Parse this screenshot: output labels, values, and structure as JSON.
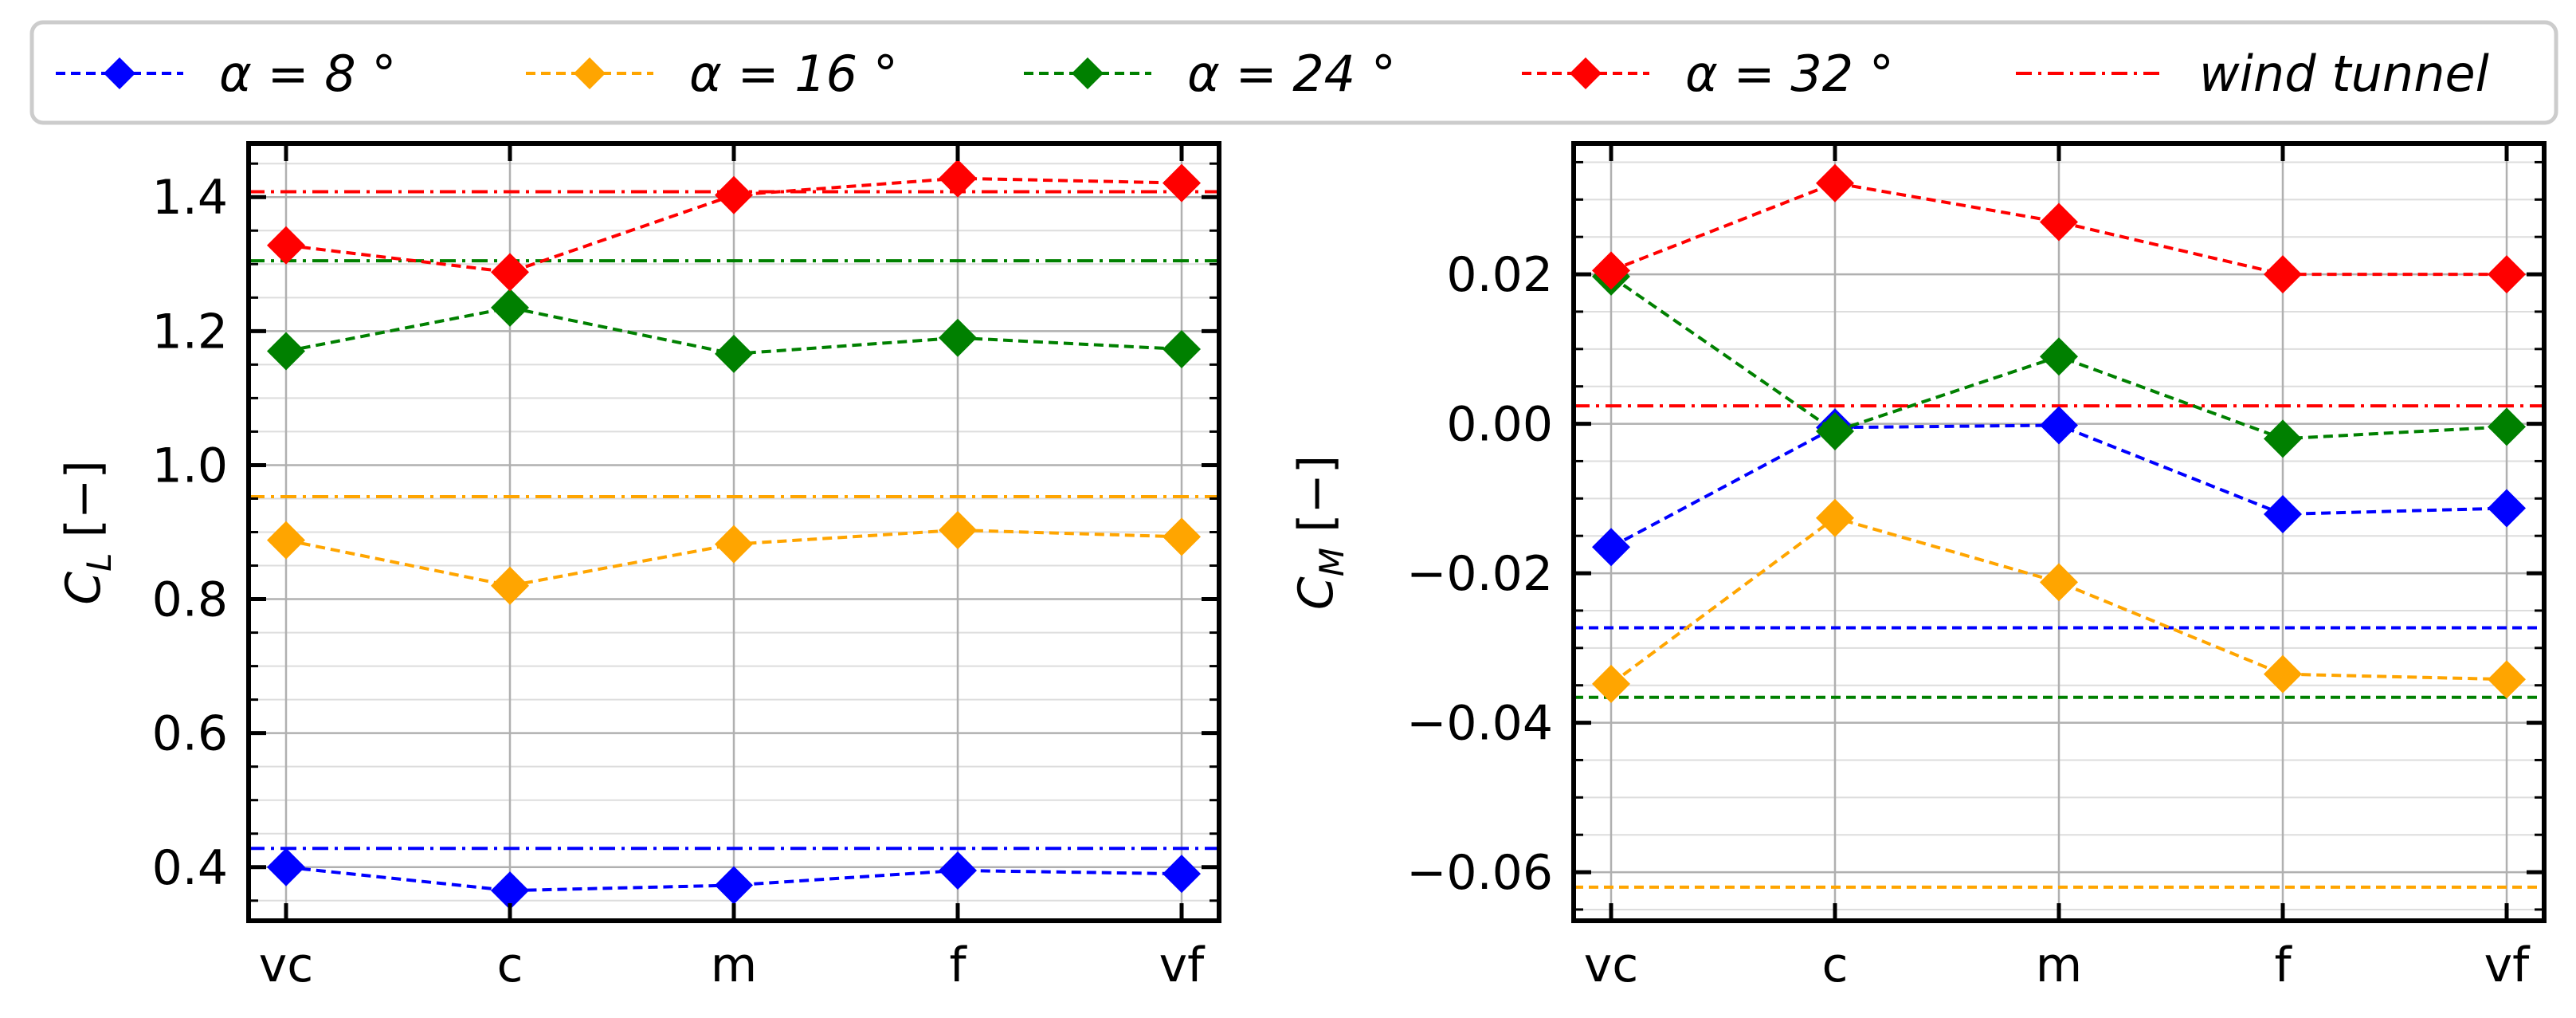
{
  "legend": {
    "entries": [
      {
        "label_text": "α = 8 °",
        "color": "#0000ff",
        "style": "marker"
      },
      {
        "label_text": "α = 16 °",
        "color": "#ffa500",
        "style": "marker"
      },
      {
        "label_text": "α = 24 °",
        "color": "#008000",
        "style": "marker"
      },
      {
        "label_text": "α = 32 °",
        "color": "#ff0000",
        "style": "marker"
      },
      {
        "label_text": "wind tunnel",
        "color": "#ff0000",
        "style": "dashdot"
      }
    ]
  },
  "colors": {
    "a8": "#0000ff",
    "a16": "#ffa500",
    "a24": "#008000",
    "a32": "#ff0000"
  },
  "chart_data": [
    {
      "type": "line",
      "panel": "left",
      "categories": [
        "vc",
        "c",
        "m",
        "f",
        "vf"
      ],
      "ylabel": "C_L [−]",
      "ylabel_main": "C",
      "ylabel_sub": "L",
      "ylabel_rest": " [−]",
      "ylim": [
        0.32,
        1.48
      ],
      "yticks": [
        0.4,
        0.6,
        0.8,
        1.0,
        1.2,
        1.4
      ],
      "ytick_labels": [
        "0.4",
        "0.6",
        "0.8",
        "1.0",
        "1.2",
        "1.4"
      ],
      "series": [
        {
          "name": "α = 8 °",
          "color": "#0000ff",
          "values": [
            0.4,
            0.365,
            0.373,
            0.395,
            0.39
          ]
        },
        {
          "name": "α = 16 °",
          "color": "#ffa500",
          "values": [
            0.888,
            0.82,
            0.882,
            0.903,
            0.893
          ]
        },
        {
          "name": "α = 24 °",
          "color": "#008000",
          "values": [
            1.17,
            1.235,
            1.166,
            1.19,
            1.173
          ]
        },
        {
          "name": "α = 32 °",
          "color": "#ff0000",
          "values": [
            1.328,
            1.288,
            1.403,
            1.428,
            1.421
          ]
        }
      ],
      "wind_tunnel": [
        {
          "alpha": "8",
          "color": "#0000ff",
          "value": 0.428,
          "style": "dashdot"
        },
        {
          "alpha": "16",
          "color": "#ffa500",
          "value": 0.953,
          "style": "dashdot"
        },
        {
          "alpha": "24",
          "color": "#008000",
          "value": 1.305,
          "style": "dashdot"
        },
        {
          "alpha": "32",
          "color": "#ff0000",
          "value": 1.408,
          "style": "dashdot"
        }
      ]
    },
    {
      "type": "line",
      "panel": "right",
      "categories": [
        "vc",
        "c",
        "m",
        "f",
        "vf"
      ],
      "ylabel": "C_M [−]",
      "ylabel_main": "C",
      "ylabel_sub": "M",
      "ylabel_rest": " [−]",
      "ylim": [
        -0.0665,
        0.0375
      ],
      "yticks": [
        -0.06,
        -0.04,
        -0.02,
        0.0,
        0.02
      ],
      "ytick_labels": [
        "−0.06",
        "−0.04",
        "−0.02",
        "0.00",
        "0.02"
      ],
      "series": [
        {
          "name": "α = 8 °",
          "color": "#0000ff",
          "values": [
            -0.0165,
            -0.0005,
            -0.0002,
            -0.0121,
            -0.0113
          ]
        },
        {
          "name": "α = 16 °",
          "color": "#ffa500",
          "values": [
            -0.0348,
            -0.0126,
            -0.0212,
            -0.0335,
            -0.0342
          ]
        },
        {
          "name": "α = 24 °",
          "color": "#008000",
          "values": [
            0.0197,
            -0.001,
            0.009,
            -0.002,
            -0.0004
          ]
        },
        {
          "name": "α = 32 °",
          "color": "#ff0000",
          "values": [
            0.0205,
            0.0322,
            0.027,
            0.02,
            0.02
          ]
        }
      ],
      "wind_tunnel": [
        {
          "alpha": "8",
          "color": "#0000ff",
          "value": -0.0273,
          "style": "dashed"
        },
        {
          "alpha": "16",
          "color": "#ffa500",
          "value": -0.062,
          "style": "dashed"
        },
        {
          "alpha": "24",
          "color": "#008000",
          "value": -0.0366,
          "style": "dashed"
        },
        {
          "alpha": "32",
          "color": "#ff0000",
          "value": 0.0024,
          "style": "dashdot"
        }
      ]
    }
  ]
}
